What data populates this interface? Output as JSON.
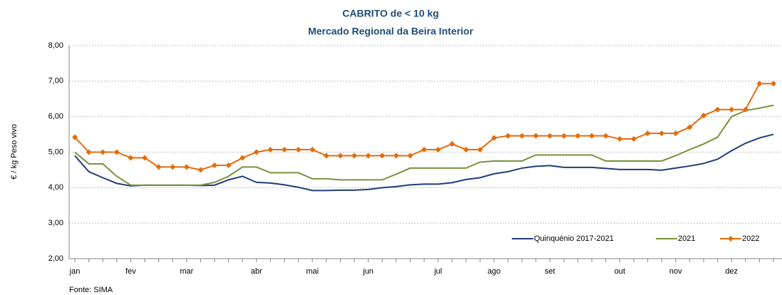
{
  "chart_data": {
    "type": "line",
    "title": "CABRITO de < 10 kg",
    "subtitle": "Mercado Regional da Beira Interior",
    "y_label": "€ / kg Peso vivo",
    "source": "Fonte: SIMA",
    "categories": [
      "jan",
      null,
      null,
      null,
      "fev",
      null,
      null,
      null,
      "mar",
      null,
      null,
      null,
      null,
      "abr",
      null,
      null,
      null,
      "mai",
      null,
      null,
      null,
      "jun",
      null,
      null,
      null,
      null,
      "jul",
      null,
      null,
      null,
      "ago",
      null,
      null,
      null,
      "set",
      null,
      null,
      null,
      null,
      "out",
      null,
      null,
      null,
      "nov",
      null,
      null,
      null,
      "dez",
      null,
      null,
      null
    ],
    "series": [
      {
        "name": "Quinquénio 2017-2021",
        "color": "#1f3d7a",
        "marker": false,
        "values": [
          4.9,
          4.45,
          4.28,
          4.12,
          4.05,
          4.07,
          4.07,
          4.07,
          4.07,
          4.06,
          4.07,
          4.22,
          4.32,
          4.15,
          4.13,
          4.08,
          4.01,
          3.92,
          3.92,
          3.93,
          3.93,
          3.95,
          4.0,
          4.03,
          4.08,
          4.1,
          4.1,
          4.14,
          4.23,
          4.28,
          4.39,
          4.45,
          4.55,
          4.6,
          4.62,
          4.57,
          4.57,
          4.57,
          4.54,
          4.51,
          4.51,
          4.51,
          4.49,
          4.55,
          4.61,
          4.68,
          4.8,
          5.04,
          5.25,
          5.4,
          5.5
        ]
      },
      {
        "name": "2021",
        "color": "#77933c",
        "marker": false,
        "values": [
          5.0,
          4.67,
          4.67,
          4.32,
          4.07,
          4.07,
          4.07,
          4.07,
          4.07,
          4.07,
          4.15,
          4.32,
          4.58,
          4.58,
          4.42,
          4.42,
          4.42,
          4.25,
          4.25,
          4.22,
          4.22,
          4.22,
          4.22,
          4.38,
          4.55,
          4.55,
          4.55,
          4.55,
          4.55,
          4.72,
          4.75,
          4.75,
          4.75,
          4.92,
          4.92,
          4.92,
          4.92,
          4.92,
          4.75,
          4.75,
          4.75,
          4.75,
          4.75,
          4.9,
          5.07,
          5.23,
          5.42,
          6.0,
          6.17,
          6.24,
          6.32
        ]
      },
      {
        "name": "2022",
        "color": "#e46c0a",
        "marker": true,
        "values": [
          5.42,
          5.0,
          5.0,
          5.0,
          4.84,
          4.84,
          4.58,
          4.58,
          4.58,
          4.5,
          4.63,
          4.63,
          4.84,
          5.0,
          5.07,
          5.07,
          5.07,
          5.07,
          4.9,
          4.9,
          4.9,
          4.9,
          4.9,
          4.9,
          4.9,
          5.07,
          5.07,
          5.23,
          5.07,
          5.07,
          5.4,
          5.46,
          5.46,
          5.46,
          5.46,
          5.46,
          5.46,
          5.46,
          5.46,
          5.37,
          5.37,
          5.53,
          5.53,
          5.53,
          5.7,
          6.03,
          6.2,
          6.2,
          6.2,
          6.93,
          6.93
        ]
      }
    ],
    "ylim": [
      2,
      8
    ],
    "yticks": [
      {
        "value": 2,
        "label": "2,00"
      },
      {
        "value": 3,
        "label": "3,00"
      },
      {
        "value": 4,
        "label": "4,00"
      },
      {
        "value": 5,
        "label": "5,00"
      },
      {
        "value": 6,
        "label": "6,00"
      },
      {
        "value": 7,
        "label": "7,00"
      },
      {
        "value": 8,
        "label": "8,00"
      }
    ],
    "grid": true,
    "legend": "bottom-right"
  }
}
